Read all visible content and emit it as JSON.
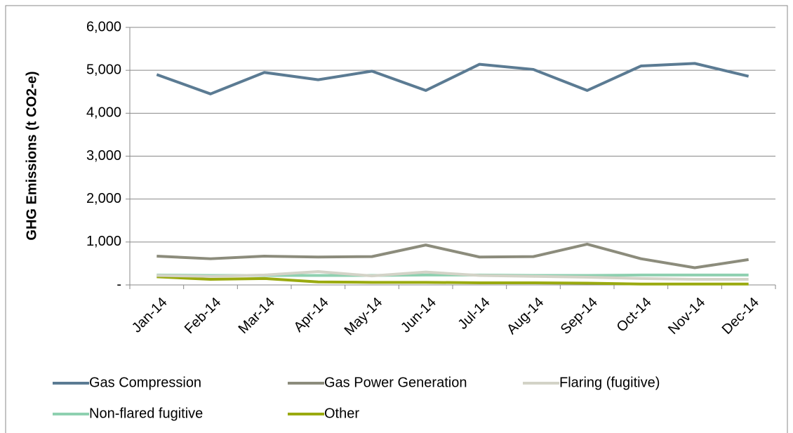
{
  "chart_data": {
    "type": "line",
    "y_label": "GHG Emissions (t CO2-e)",
    "categories": [
      "Jan-14",
      "Feb-14",
      "Mar-14",
      "Apr-14",
      "May-14",
      "Jun-14",
      "Jul-14",
      "Aug-14",
      "Sep-14",
      "Oct-14",
      "Nov-14",
      "Dec-14"
    ],
    "series": [
      {
        "name": "Gas Compression",
        "color": "#5b7b93",
        "values": [
          4900,
          4450,
          4950,
          4780,
          4980,
          4530,
          5140,
          5020,
          4530,
          5100,
          5160,
          4860
        ]
      },
      {
        "name": "Gas Power Generation",
        "color": "#8c8c7c",
        "values": [
          670,
          610,
          670,
          650,
          660,
          930,
          650,
          660,
          950,
          610,
          400,
          590
        ]
      },
      {
        "name": "Flaring (fugitive)",
        "color": "#d3d3c7",
        "values": [
          220,
          200,
          230,
          310,
          210,
          300,
          220,
          200,
          180,
          150,
          130,
          130
        ]
      },
      {
        "name": "Non-flared fugitive",
        "color": "#8ed0b0",
        "values": [
          230,
          220,
          220,
          220,
          220,
          230,
          230,
          220,
          220,
          230,
          230,
          230
        ]
      },
      {
        "name": "Other",
        "color": "#9aaa10",
        "values": [
          190,
          130,
          150,
          70,
          60,
          60,
          50,
          50,
          40,
          20,
          20,
          20
        ]
      }
    ],
    "ylim": [
      0,
      6000
    ],
    "yticks": [
      {
        "value": 0,
        "label": "-"
      },
      {
        "value": 1000,
        "label": "1,000"
      },
      {
        "value": 2000,
        "label": "2,000"
      },
      {
        "value": 3000,
        "label": "3,000"
      },
      {
        "value": 4000,
        "label": "4,000"
      },
      {
        "value": 5000,
        "label": "5,000"
      },
      {
        "value": 6000,
        "label": "6,000"
      }
    ],
    "grid": true
  }
}
